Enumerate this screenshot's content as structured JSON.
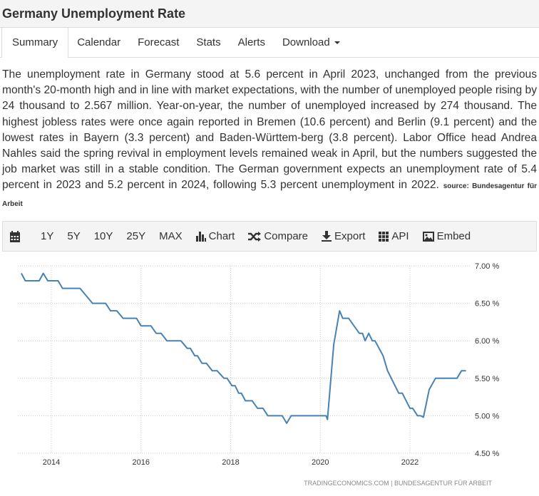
{
  "header": {
    "title": "Germany Unemployment Rate"
  },
  "tabs": [
    {
      "label": "Summary",
      "active": true
    },
    {
      "label": "Calendar"
    },
    {
      "label": "Forecast"
    },
    {
      "label": "Stats"
    },
    {
      "label": "Alerts"
    },
    {
      "label": "Download"
    }
  ],
  "summary": {
    "text": "The unemployment rate in Germany stood at 5.6 percent in April 2023, unchanged from the previous month's 20-month high and in line with market expectations, with the number of unemployed people rising by 24 thousand to 2.567 million. Year-on-year, the number of unemployed increased by 274 thousand. The highest jobless rates were once again reported in Bremen (10.6 percent) and Berlin (9.1 percent) and the lowest rates in Bayern (3.3 percent) and Baden-Württem-berg (3.8 percent). Labor Office head Andrea Nahles said the spring revival in employment levels remained weak in April, but the numbers suggested the job market was still in a stable condition. The German government expects an unemployment rate of 5.4 percent in 2023 and 5.2 percent in 2024, following 5.3 percent unemployment in 2022.",
    "source": "source: Bundesagentur für Arbeit"
  },
  "toolbar": {
    "ranges": [
      "1Y",
      "5Y",
      "10Y",
      "25Y",
      "MAX"
    ],
    "chart": "Chart",
    "compare": "Compare",
    "export": "Export",
    "api": "API",
    "embed": "Embed"
  },
  "colors": {
    "line": "#4682b4",
    "grid": "#c8c8c8"
  },
  "chart_data": {
    "type": "line",
    "title": "Germany Unemployment Rate",
    "xlabel": "",
    "ylabel": "",
    "xlim": [
      2013.33,
      2023.25
    ],
    "ylim": [
      4.5,
      7.0
    ],
    "x_ticks": [
      2014,
      2016,
      2018,
      2020,
      2022
    ],
    "x_tick_labels": [
      "2014",
      "2016",
      "2018",
      "2020",
      "2022"
    ],
    "y_ticks": [
      4.5,
      5.0,
      5.5,
      6.0,
      6.5,
      7.0
    ],
    "y_tick_labels": [
      "4.50 %",
      "5.00 %",
      "5.50 %",
      "6.00 %",
      "6.50 %",
      "7.00 %"
    ],
    "grid": true,
    "credit": "TRADINGECONOMICS.COM  |  BUNDESAGENTUR FÜR ARBEIT",
    "series": [
      {
        "name": "Unemployment Rate",
        "points": [
          [
            2013.33,
            6.9
          ],
          [
            2013.42,
            6.8
          ],
          [
            2013.73,
            6.8
          ],
          [
            2013.82,
            6.9
          ],
          [
            2013.92,
            6.8
          ],
          [
            2014.15,
            6.8
          ],
          [
            2014.25,
            6.7
          ],
          [
            2014.64,
            6.7
          ],
          [
            2014.78,
            6.6
          ],
          [
            2014.92,
            6.5
          ],
          [
            2015.21,
            6.5
          ],
          [
            2015.32,
            6.4
          ],
          [
            2015.46,
            6.4
          ],
          [
            2015.6,
            6.3
          ],
          [
            2015.9,
            6.3
          ],
          [
            2016.0,
            6.2
          ],
          [
            2016.22,
            6.2
          ],
          [
            2016.34,
            6.1
          ],
          [
            2016.45,
            6.1
          ],
          [
            2016.58,
            6.0
          ],
          [
            2016.89,
            6.0
          ],
          [
            2017.03,
            5.9
          ],
          [
            2017.1,
            5.9
          ],
          [
            2017.2,
            5.8
          ],
          [
            2017.26,
            5.8
          ],
          [
            2017.36,
            5.7
          ],
          [
            2017.46,
            5.7
          ],
          [
            2017.59,
            5.6
          ],
          [
            2017.7,
            5.6
          ],
          [
            2017.85,
            5.5
          ],
          [
            2017.92,
            5.5
          ],
          [
            2018.03,
            5.4
          ],
          [
            2018.1,
            5.4
          ],
          [
            2018.18,
            5.3
          ],
          [
            2018.24,
            5.3
          ],
          [
            2018.33,
            5.2
          ],
          [
            2018.48,
            5.2
          ],
          [
            2018.6,
            5.1
          ],
          [
            2018.72,
            5.1
          ],
          [
            2018.83,
            5.0
          ],
          [
            2019.15,
            5.0
          ],
          [
            2019.25,
            4.9
          ],
          [
            2019.35,
            5.0
          ],
          [
            2020.13,
            5.0
          ],
          [
            2020.16,
            4.95
          ],
          [
            2020.3,
            5.95
          ],
          [
            2020.43,
            6.4
          ],
          [
            2020.5,
            6.3
          ],
          [
            2020.63,
            6.3
          ],
          [
            2020.87,
            6.1
          ],
          [
            2020.94,
            6.1
          ],
          [
            2021.0,
            6.0
          ],
          [
            2021.08,
            6.1
          ],
          [
            2021.16,
            6.0
          ],
          [
            2021.22,
            6.0
          ],
          [
            2021.4,
            5.8
          ],
          [
            2021.5,
            5.6
          ],
          [
            2021.75,
            5.3
          ],
          [
            2021.83,
            5.3
          ],
          [
            2022.0,
            5.1
          ],
          [
            2022.06,
            5.1
          ],
          [
            2022.17,
            5.0
          ],
          [
            2022.24,
            5.0
          ],
          [
            2022.3,
            4.98
          ],
          [
            2022.43,
            5.35
          ],
          [
            2022.57,
            5.5
          ],
          [
            2023.05,
            5.5
          ],
          [
            2023.15,
            5.6
          ],
          [
            2023.25,
            5.6
          ]
        ]
      }
    ]
  }
}
